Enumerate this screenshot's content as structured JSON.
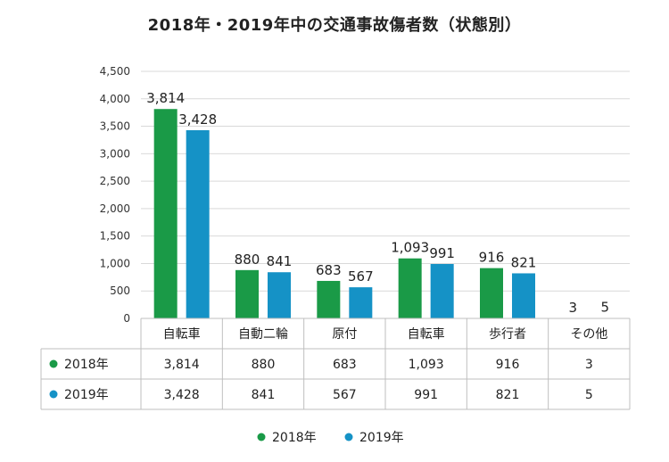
{
  "chart_data": {
    "type": "bar",
    "title": "2018年・2019年中の交通事故傷者数（状態別）",
    "categories": [
      "自転車",
      "自動二輪",
      "原付",
      "自転車",
      "歩行者",
      "その他"
    ],
    "series": [
      {
        "name": "2018年",
        "values": [
          3814,
          880,
          683,
          1093,
          916,
          3
        ],
        "labels": [
          "3,814",
          "880",
          "683",
          "1,093",
          "916",
          "3"
        ]
      },
      {
        "name": "2019年",
        "values": [
          3428,
          841,
          567,
          991,
          821,
          5
        ],
        "labels": [
          "3,428",
          "841",
          "567",
          "991",
          "821",
          "5"
        ]
      }
    ],
    "ylim": [
      0,
      4500
    ],
    "yticks": [
      "0",
      "500",
      "1,000",
      "1,500",
      "2,000",
      "2,500",
      "3,000",
      "3,500",
      "4,000",
      "4,500"
    ],
    "grid": true,
    "legend_position": "bottom",
    "data_table": true
  },
  "colors": {
    "series_2018": "#1a9a47",
    "series_2019": "#1592c6",
    "grid": "#d9d9d9",
    "table_border": "#bfbfbf"
  }
}
